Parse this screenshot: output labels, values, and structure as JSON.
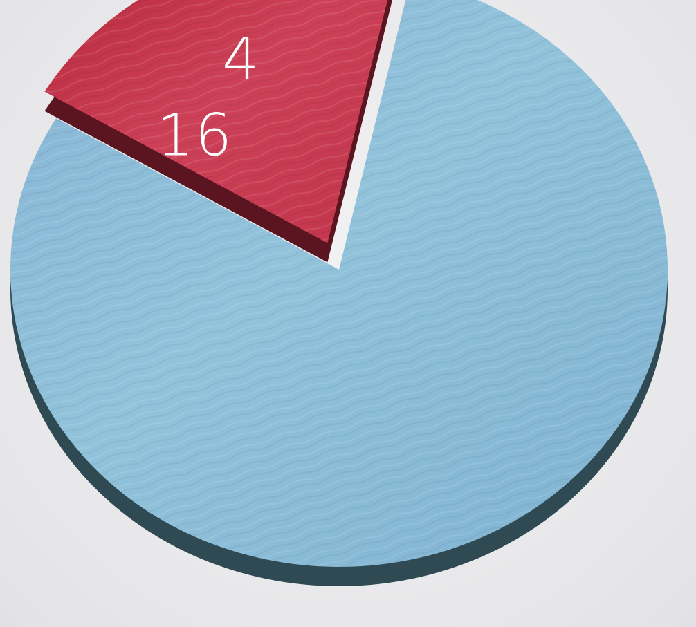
{
  "chart_data": {
    "type": "pie",
    "categories": [
      "",
      ""
    ],
    "values": [
      16,
      4
    ],
    "labels": [
      "16",
      "4"
    ],
    "colors": [
      "#8bbcd8",
      "#c93b4f"
    ],
    "exploded": [
      false,
      true
    ],
    "title": "",
    "legend": "none"
  }
}
